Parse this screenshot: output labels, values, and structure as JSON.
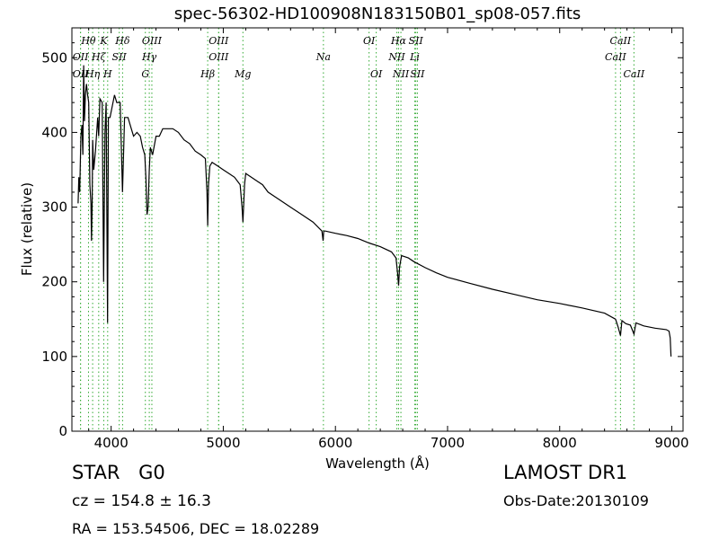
{
  "chart_data": {
    "type": "line",
    "title": "spec-56302-HD100908N183150B01_sp08-057.fits",
    "xlabel": "Wavelength (Å)",
    "ylabel": "Flux (relative)",
    "xlim": [
      3650,
      9100
    ],
    "ylim": [
      0,
      540
    ],
    "xticks": [
      4000,
      5000,
      6000,
      7000,
      8000,
      9000
    ],
    "yticks": [
      0,
      100,
      200,
      300,
      400,
      500
    ],
    "grid": false,
    "series": [
      {
        "x": [
          3705,
          3712,
          3720,
          3730,
          3740,
          3748,
          3755,
          3762,
          3770,
          3780,
          3790,
          3800,
          3810,
          3820,
          3825,
          3830,
          3835,
          3845,
          3860,
          3880,
          3889,
          3900,
          3920,
          3933,
          3945,
          3955,
          3968,
          3975,
          3990,
          4010,
          4030,
          4050,
          4080,
          4101,
          4120,
          4150,
          4180,
          4200,
          4230,
          4260,
          4280,
          4300,
          4310,
          4320,
          4330,
          4340,
          4350,
          4370,
          4400,
          4430,
          4460,
          4500,
          4550,
          4600,
          4650,
          4700,
          4750,
          4800,
          4840,
          4855,
          4861,
          4868,
          4880,
          4900,
          4950,
          5000,
          5050,
          5100,
          5150,
          5167,
          5175,
          5184,
          5190,
          5200,
          5250,
          5300,
          5350,
          5400,
          5450,
          5500,
          5600,
          5700,
          5800,
          5880,
          5890,
          5896,
          5910,
          6000,
          6100,
          6200,
          6300,
          6400,
          6500,
          6540,
          6555,
          6563,
          6572,
          6590,
          6650,
          6700,
          6800,
          6900,
          7000,
          7200,
          7400,
          7600,
          7800,
          8000,
          8200,
          8400,
          8498,
          8520,
          8542,
          8555,
          8590,
          8630,
          8662,
          8680,
          8750,
          8850,
          8950,
          8975,
          8985,
          8993
        ],
        "values": [
          305,
          340,
          320,
          395,
          410,
          370,
          490,
          415,
          450,
          465,
          450,
          440,
          330,
          305,
          255,
          300,
          390,
          350,
          375,
          420,
          395,
          445,
          440,
          200,
          400,
          440,
          145,
          420,
          420,
          435,
          450,
          440,
          440,
          320,
          420,
          420,
          405,
          395,
          400,
          395,
          380,
          370,
          340,
          290,
          300,
          350,
          380,
          370,
          395,
          395,
          405,
          405,
          405,
          400,
          390,
          385,
          375,
          370,
          365,
          320,
          275,
          330,
          355,
          360,
          355,
          350,
          345,
          340,
          330,
          300,
          280,
          310,
          330,
          345,
          340,
          335,
          330,
          320,
          315,
          310,
          300,
          290,
          280,
          268,
          255,
          268,
          268,
          265,
          262,
          258,
          252,
          247,
          240,
          232,
          210,
          195,
          220,
          235,
          232,
          227,
          219,
          212,
          206,
          198,
          190,
          183,
          176,
          171,
          165,
          158,
          150,
          140,
          128,
          148,
          144,
          142,
          130,
          145,
          141,
          138,
          136,
          134,
          125,
          100
        ]
      }
    ],
    "lines": [
      {
        "name": "OII",
        "x": 3727,
        "row": 2
      },
      {
        "name": "OII",
        "x": 3727,
        "row": 3
      },
      {
        "name": "Hθ",
        "x": 3798,
        "row": 1
      },
      {
        "name": "Hη",
        "x": 3835,
        "row": 3
      },
      {
        "name": "Hζ",
        "x": 3889,
        "row": 2
      },
      {
        "name": "K",
        "x": 3934,
        "row": 1
      },
      {
        "name": "H",
        "x": 3969,
        "row": 3
      },
      {
        "name": "SII",
        "x": 4072,
        "row": 2
      },
      {
        "name": "Hδ",
        "x": 4102,
        "row": 1
      },
      {
        "name": "OIII",
        "x": 4363,
        "row": 1
      },
      {
        "name": "Hγ",
        "x": 4340,
        "row": 2
      },
      {
        "name": "G",
        "x": 4305,
        "row": 3
      },
      {
        "name": "OIII",
        "x": 4959,
        "row": 1
      },
      {
        "name": "OIII",
        "x": 4959,
        "row": 2
      },
      {
        "name": "Hβ",
        "x": 4861,
        "row": 3
      },
      {
        "name": "Mg",
        "x": 5175,
        "row": 3
      },
      {
        "name": "Na",
        "x": 5893,
        "row": 2
      },
      {
        "name": "OI",
        "x": 6300,
        "row": 1
      },
      {
        "name": "OI",
        "x": 6364,
        "row": 3
      },
      {
        "name": "Hα",
        "x": 6563,
        "row": 1
      },
      {
        "name": "NII",
        "x": 6548,
        "row": 2
      },
      {
        "name": "NII",
        "x": 6584,
        "row": 3
      },
      {
        "name": "SII",
        "x": 6717,
        "row": 1
      },
      {
        "name": "Li",
        "x": 6708,
        "row": 2
      },
      {
        "name": "SII",
        "x": 6731,
        "row": 3
      },
      {
        "name": "CaII",
        "x": 8542,
        "row": 1
      },
      {
        "name": "CaII",
        "x": 8498,
        "row": 2
      },
      {
        "name": "CaII",
        "x": 8662,
        "row": 3
      }
    ]
  },
  "info": {
    "star_class": "STAR   G0",
    "survey": "LAMOST DR1",
    "redshift": "cz = 154.8  ± 16.3",
    "obs_date": "Obs-Date:20130109",
    "coords": "RA = 153.54506, DEC = 18.02289"
  },
  "colors": {
    "spectrum": "#000000",
    "line_marker": "#33aa33"
  }
}
